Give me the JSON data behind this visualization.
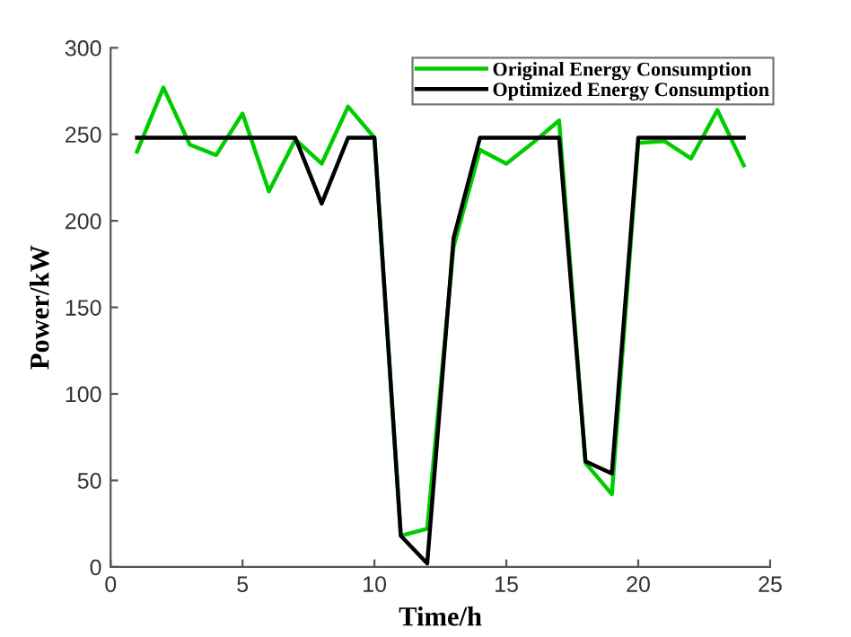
{
  "chart_data": {
    "type": "line",
    "xlabel": "Time/h",
    "ylabel": "Power/kW",
    "x": [
      1,
      2,
      3,
      4,
      5,
      6,
      7,
      8,
      9,
      10,
      11,
      12,
      13,
      14,
      15,
      16,
      17,
      18,
      19,
      20,
      21,
      22,
      23,
      24
    ],
    "series": [
      {
        "name": "Original Energy Consumption",
        "color": "#00cc00",
        "values": [
          240,
          277,
          244,
          238,
          262,
          217,
          247,
          233,
          266,
          248,
          18,
          22,
          185,
          241,
          233,
          245,
          258,
          60,
          42,
          245,
          246,
          236,
          264,
          232
        ]
      },
      {
        "name": "Optimized Energy Consumption",
        "color": "#000000",
        "values": [
          248,
          248,
          248,
          248,
          248,
          248,
          248,
          210,
          248,
          248,
          18,
          2,
          190,
          248,
          248,
          248,
          248,
          61,
          54,
          248,
          248,
          248,
          248,
          248
        ]
      }
    ],
    "xlim": [
      0,
      25
    ],
    "xticks": [
      0,
      5,
      10,
      15,
      20,
      25
    ],
    "ylim": [
      0,
      300
    ],
    "yticks": [
      0,
      50,
      100,
      150,
      200,
      250,
      300
    ],
    "grid": false,
    "legend": "top right",
    "marker": "none",
    "line_style": "solid"
  }
}
